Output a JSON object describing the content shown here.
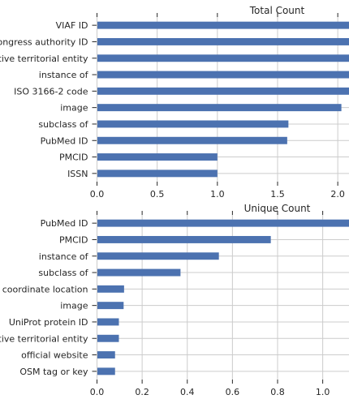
{
  "chart_data": [
    {
      "type": "bar",
      "orientation": "horizontal",
      "title": "Total Count",
      "categories": [
        "VIAF ID",
        "Library of Congress authority ID",
        "located in the administrative territorial entity",
        "instance of",
        "ISO 3166-2 code",
        "image",
        "subclass of",
        "PubMed ID",
        "PMCID",
        "ISSN"
      ],
      "values": [
        2.2,
        2.2,
        2.2,
        2.2,
        2.2,
        2.03,
        1.59,
        1.58,
        1.0,
        1.0
      ],
      "xlim": [
        0,
        2.1
      ],
      "xticks": [
        "0.0",
        "0.5",
        "1.0",
        "1.5",
        "2.0"
      ],
      "xtick_values": [
        0,
        0.5,
        1.0,
        1.5,
        2.0
      ],
      "grid": true,
      "color": "#4c72b0"
    },
    {
      "type": "bar",
      "orientation": "horizontal",
      "title": "Unique Count",
      "categories": [
        "PubMed ID",
        "PMCID",
        "instance of",
        "subclass of",
        "coordinate location",
        "image",
        "UniProt protein ID",
        "located in the administrative territorial entity",
        "official website",
        "OSM tag or key"
      ],
      "values": [
        1.15,
        0.77,
        0.54,
        0.37,
        0.12,
        0.118,
        0.097,
        0.097,
        0.08,
        0.08
      ],
      "xlim": [
        0,
        1.12
      ],
      "xticks": [
        "0.0",
        "0.2",
        "0.4",
        "0.6",
        "0.8",
        "1.0"
      ],
      "xtick_values": [
        0,
        0.2,
        0.4,
        0.6,
        0.8,
        1.0
      ],
      "grid": true,
      "color": "#4c72b0"
    }
  ]
}
